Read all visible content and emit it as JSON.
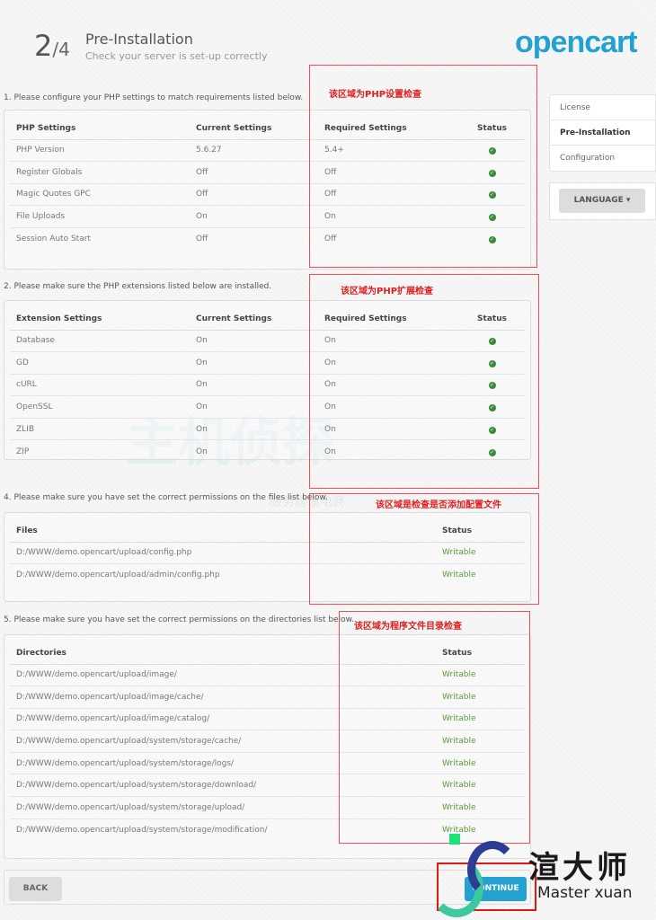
{
  "header": {
    "step": "2",
    "total": "/4",
    "title": "Pre-Installation",
    "subtitle": "Check your server is set-up correctly",
    "logo": "opencart"
  },
  "sidebar": {
    "items": [
      "License",
      "Pre-Installation",
      "Configuration"
    ],
    "language": "LANGUAGE ▾"
  },
  "sections": [
    {
      "step": "1. Please configure your PHP settings to match requirements listed below.",
      "headers": [
        "PHP Settings",
        "Current Settings",
        "Required Settings",
        "Status"
      ],
      "rows": [
        [
          "PHP Version",
          "5.6.27",
          "5.4+",
          "ok"
        ],
        [
          "Register Globals",
          "Off",
          "Off",
          "ok"
        ],
        [
          "Magic Quotes GPC",
          "Off",
          "Off",
          "ok"
        ],
        [
          "File Uploads",
          "On",
          "On",
          "ok"
        ],
        [
          "Session Auto Start",
          "Off",
          "Off",
          "ok"
        ]
      ]
    },
    {
      "step": "2. Please make sure the PHP extensions listed below are installed.",
      "headers": [
        "Extension Settings",
        "Current Settings",
        "Required Settings",
        "Status"
      ],
      "rows": [
        [
          "Database",
          "On",
          "On",
          "ok"
        ],
        [
          "GD",
          "On",
          "On",
          "ok"
        ],
        [
          "cURL",
          "On",
          "On",
          "ok"
        ],
        [
          "OpenSSL",
          "On",
          "On",
          "ok"
        ],
        [
          "ZLIB",
          "On",
          "On",
          "ok"
        ],
        [
          "ZIP",
          "On",
          "On",
          "ok"
        ]
      ]
    },
    {
      "step": "4. Please make sure you have set the correct permissions on the files list below.",
      "headers": [
        "Files",
        "Status"
      ],
      "rows": [
        [
          "D:/WWW/demo.opencart/upload/config.php",
          "Writable"
        ],
        [
          "D:/WWW/demo.opencart/upload/admin/config.php",
          "Writable"
        ]
      ]
    },
    {
      "step": "5. Please make sure you have set the correct permissions on the directories list below.",
      "headers": [
        "Directories",
        "Status"
      ],
      "rows": [
        [
          "D:/WWW/demo.opencart/upload/image/",
          "Writable"
        ],
        [
          "D:/WWW/demo.opencart/upload/image/cache/",
          "Writable"
        ],
        [
          "D:/WWW/demo.opencart/upload/image/catalog/",
          "Writable"
        ],
        [
          "D:/WWW/demo.opencart/upload/system/storage/cache/",
          "Writable"
        ],
        [
          "D:/WWW/demo.opencart/upload/system/storage/logs/",
          "Writable"
        ],
        [
          "D:/WWW/demo.opencart/upload/system/storage/download/",
          "Writable"
        ],
        [
          "D:/WWW/demo.opencart/upload/system/storage/upload/",
          "Writable"
        ],
        [
          "D:/WWW/demo.opencart/upload/system/storage/modification/",
          "Writable"
        ]
      ]
    }
  ],
  "annotations": [
    "该区域为PHP设置检查",
    "该区域为PHP扩展检查",
    "该区域是检查是否添加配置文件",
    "该区域为程序文件目录检查"
  ],
  "footer": {
    "back": "BACK",
    "continue": "CONTINUE"
  },
  "watermarks": {
    "main": "主机侦探",
    "sub": "服务跨境电商",
    "brand": "渲大师",
    "brand_en": "Master xuan"
  }
}
